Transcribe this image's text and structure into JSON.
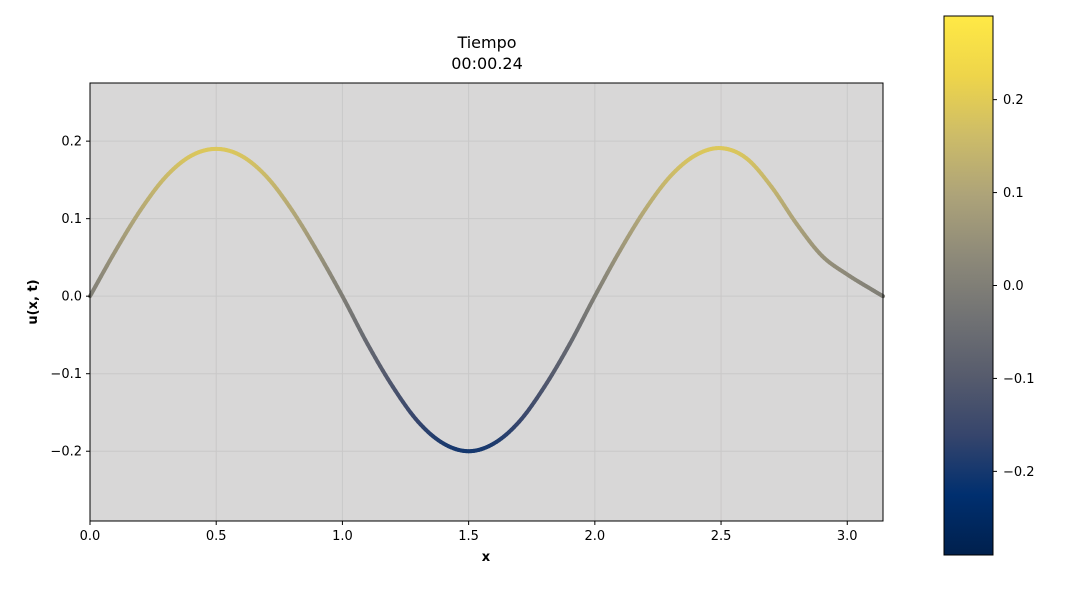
{
  "chart_data": {
    "type": "line",
    "title_line1": "Tiempo",
    "title_line2": "00:00.24",
    "xlabel": "x",
    "ylabel": "u(x, t)",
    "xlim": [
      0,
      3.1416
    ],
    "ylim": [
      -0.29,
      0.275
    ],
    "grid": true,
    "background": "#d8d7d7",
    "x_ticks": [
      "0.0",
      "0.5",
      "1.0",
      "1.5",
      "2.0",
      "2.5",
      "3.0"
    ],
    "y_ticks": [
      "0.2",
      "0.1",
      "0.0",
      "−0.1",
      "−0.2"
    ],
    "series": [
      {
        "x": [
          0,
          0.1,
          0.2,
          0.3,
          0.4,
          0.5,
          0.6,
          0.7,
          0.8,
          0.9,
          1.0,
          1.1,
          1.2,
          1.3,
          1.4,
          1.5,
          1.6,
          1.7,
          1.8,
          1.9,
          2.0,
          2.1,
          2.2,
          2.3,
          2.4,
          2.5,
          2.6,
          2.7,
          2.8,
          2.9,
          3.0,
          3.1,
          3.1416
        ],
        "y": [
          0.0,
          0.058,
          0.111,
          0.154,
          0.181,
          0.19,
          0.181,
          0.154,
          0.111,
          0.058,
          0.0,
          -0.062,
          -0.117,
          -0.162,
          -0.19,
          -0.2,
          -0.19,
          -0.162,
          -0.117,
          -0.062,
          0.0,
          0.059,
          0.112,
          0.155,
          0.182,
          0.191,
          0.178,
          0.141,
          0.093,
          0.052,
          0.028,
          0.008,
          0.0
        ]
      }
    ],
    "colorbar": {
      "colormap": "cividis",
      "range": [
        -0.29,
        0.29
      ],
      "ticks": [
        "0.2",
        "0.1",
        "0.0",
        "−0.1",
        "−0.2"
      ],
      "colors": [
        "#00204d",
        "#002f6f",
        "#36456c",
        "#575c6d",
        "#727374",
        "#8e8a79",
        "#ada379",
        "#cdbc68",
        "#eed54a",
        "#ffe945"
      ]
    }
  }
}
